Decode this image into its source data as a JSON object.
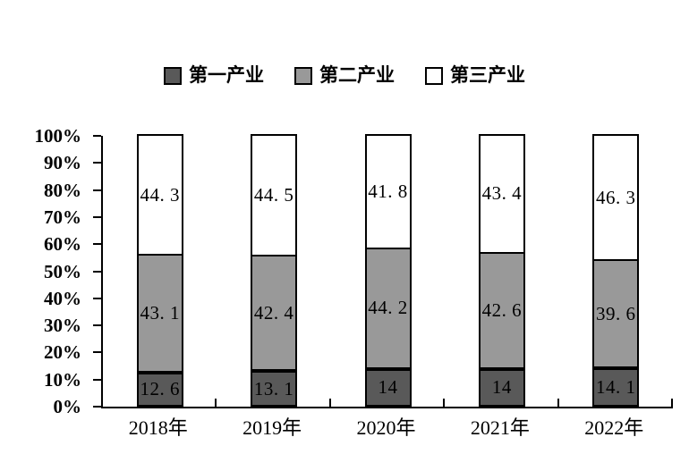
{
  "legend": [
    {
      "label": "第一产业",
      "color": "#595959"
    },
    {
      "label": "第二产业",
      "color": "#999999"
    },
    {
      "label": "第三产业",
      "color": "#ffffff"
    }
  ],
  "chart_data": {
    "type": "bar",
    "stacked": true,
    "percent": true,
    "title": "",
    "xlabel": "",
    "ylabel": "",
    "categories": [
      "2018年",
      "2019年",
      "2020年",
      "2021年",
      "2022年"
    ],
    "series": [
      {
        "name": "第一产业",
        "color": "#595959",
        "label_color": "#000000",
        "values": [
          12.6,
          13.1,
          14,
          14,
          14.1
        ],
        "labels": [
          "12. 6",
          "13. 1",
          "14",
          "14",
          "14. 1"
        ]
      },
      {
        "name": "第二产业",
        "color": "#999999",
        "label_color": "#000000",
        "values": [
          43.1,
          42.4,
          44.2,
          42.6,
          39.6
        ],
        "labels": [
          "43. 1",
          "42. 4",
          "44. 2",
          "42. 6",
          "39. 6"
        ]
      },
      {
        "name": "第三产业",
        "color": "#ffffff",
        "label_color": "#000000",
        "values": [
          44.3,
          44.5,
          41.8,
          43.4,
          46.3
        ],
        "labels": [
          "44. 3",
          "44. 5",
          "41. 8",
          "43. 4",
          "46. 3"
        ]
      }
    ],
    "y_ticks": [
      "100%",
      "90%",
      "80%",
      "70%",
      "60%",
      "50%",
      "40%",
      "30%",
      "20%",
      "10%",
      "0%"
    ],
    "ylim": [
      0,
      100
    ],
    "grid": false,
    "legend_position": "top",
    "axis_color": "#000000"
  }
}
